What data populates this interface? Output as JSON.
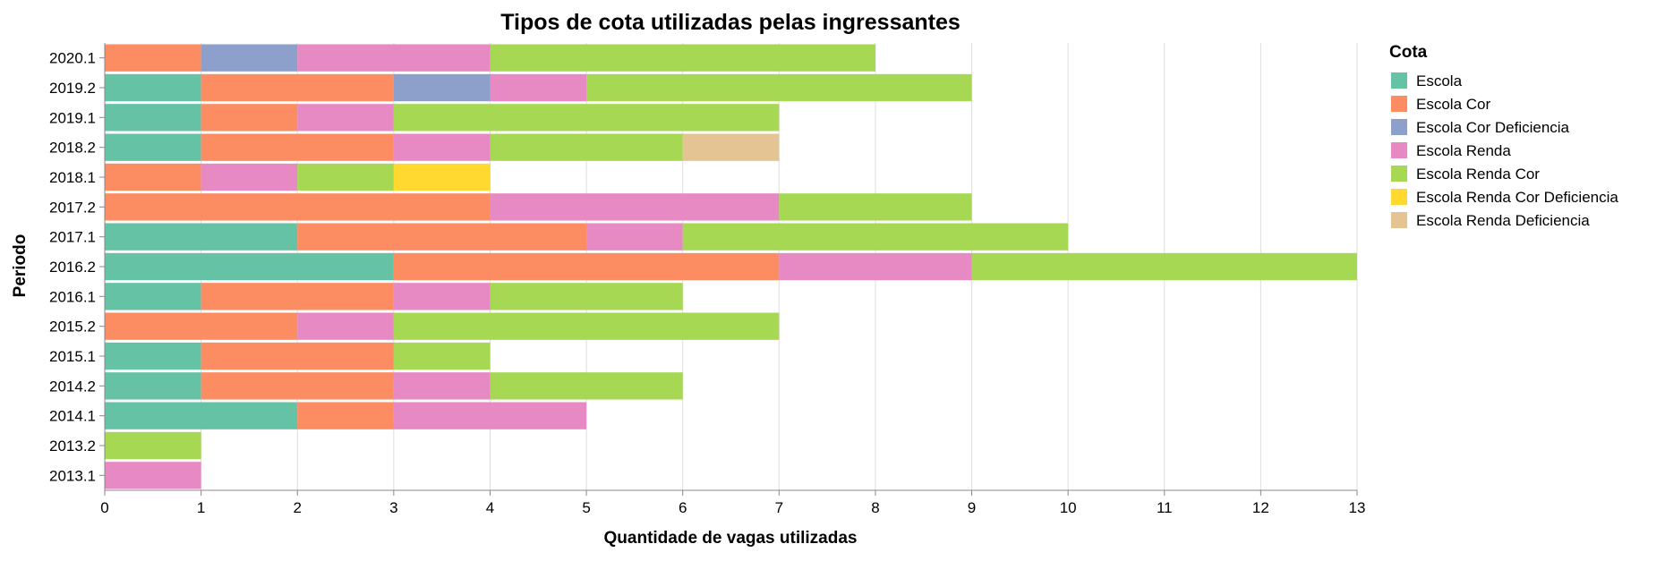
{
  "chart_data": {
    "type": "bar",
    "orientation": "horizontal",
    "stacked": true,
    "title": "Tipos de cota utilizadas pelas ingressantes",
    "xlabel": "Quantidade de vagas utilizadas",
    "ylabel": "Periodo",
    "xlim": [
      0,
      13
    ],
    "xticks": [
      "0",
      "1",
      "2",
      "3",
      "4",
      "5",
      "6",
      "7",
      "8",
      "9",
      "10",
      "11",
      "12",
      "13"
    ],
    "grid": true,
    "legend_title": "Cota",
    "legend_position": "right",
    "categories": [
      "2020.1",
      "2019.2",
      "2019.1",
      "2018.2",
      "2018.1",
      "2017.2",
      "2017.1",
      "2016.2",
      "2016.1",
      "2015.2",
      "2015.1",
      "2014.2",
      "2014.1",
      "2013.2",
      "2013.1"
    ],
    "series": [
      {
        "name": "Escola",
        "color": "#66c2a5",
        "values": [
          0,
          1,
          1,
          1,
          0,
          0,
          2,
          3,
          1,
          0,
          1,
          1,
          2,
          0,
          0
        ]
      },
      {
        "name": "Escola Cor",
        "color": "#fc8d62",
        "values": [
          1,
          2,
          1,
          2,
          1,
          4,
          3,
          4,
          2,
          2,
          2,
          2,
          1,
          0,
          0
        ]
      },
      {
        "name": "Escola Cor Deficiencia",
        "color": "#8da0cb",
        "values": [
          1,
          1,
          0,
          0,
          0,
          0,
          0,
          0,
          0,
          0,
          0,
          0,
          0,
          0,
          0
        ]
      },
      {
        "name": "Escola Renda",
        "color": "#e78ac3",
        "values": [
          2,
          1,
          1,
          1,
          1,
          3,
          1,
          2,
          1,
          1,
          0,
          1,
          2,
          0,
          1
        ]
      },
      {
        "name": "Escola Renda Cor",
        "color": "#a6d854",
        "values": [
          4,
          4,
          4,
          2,
          1,
          2,
          4,
          4,
          2,
          4,
          1,
          2,
          0,
          1,
          0
        ]
      },
      {
        "name": "Escola Renda Cor Deficiencia",
        "color": "#ffd92f",
        "values": [
          0,
          0,
          0,
          0,
          1,
          0,
          0,
          0,
          0,
          0,
          0,
          0,
          0,
          0,
          0
        ]
      },
      {
        "name": "Escola Renda Deficiencia",
        "color": "#e5c494",
        "values": [
          0,
          0,
          0,
          1,
          0,
          0,
          0,
          0,
          0,
          0,
          0,
          0,
          0,
          0,
          0
        ]
      }
    ]
  }
}
